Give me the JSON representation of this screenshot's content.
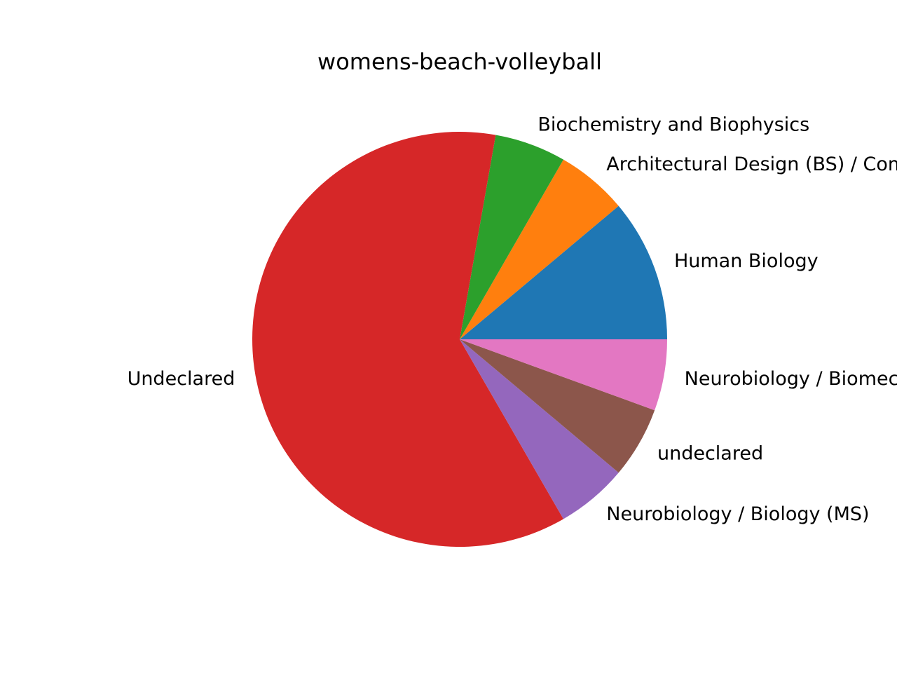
{
  "chart_data": {
    "type": "pie",
    "title": "womens-beach-volleyball",
    "start_angle_deg": 0,
    "direction": "counterclockwise",
    "slices": [
      {
        "label": "Human Biology",
        "value": 2,
        "color": "#1f77b4"
      },
      {
        "label": "Architectural Design (BS) / Computer Science (MS)",
        "value": 1,
        "color": "#ff7f0e"
      },
      {
        "label": "Biochemistry and Biophysics",
        "value": 1,
        "color": "#2ca02c"
      },
      {
        "label": "Undeclared",
        "value": 11,
        "color": "#d62728"
      },
      {
        "label": "Neurobiology / Biology (MS)",
        "value": 1,
        "color": "#9467bd"
      },
      {
        "label": "undeclared",
        "value": 1,
        "color": "#8c564b"
      },
      {
        "label": "Neurobiology / Biomechanical Engineering",
        "value": 1,
        "color": "#e377c2"
      }
    ]
  }
}
